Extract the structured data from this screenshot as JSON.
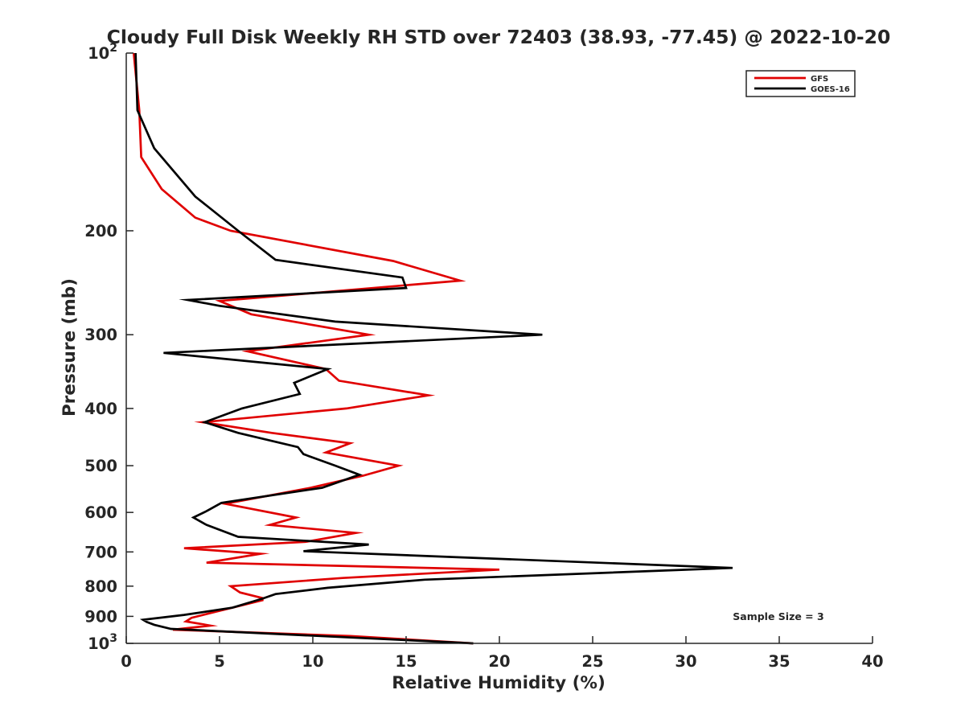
{
  "chart_data": {
    "type": "line",
    "title": "Cloudy Full Disk Weekly RH STD over 72403 (38.93, -77.45) @ 2022-10-20",
    "xlabel": "Relative Humidity (%)",
    "ylabel": "Pressure (mb)",
    "xlim": [
      0,
      40
    ],
    "ylim": [
      100,
      1000
    ],
    "y_scale": "log",
    "y_reversed": true,
    "grid": false,
    "legend_position": "top-right",
    "x_ticks": [
      0,
      5,
      10,
      15,
      20,
      25,
      30,
      35,
      40
    ],
    "y_ticks": [
      {
        "value": 100,
        "base": "10",
        "exp": "2"
      },
      {
        "value": 200,
        "label": "200"
      },
      {
        "value": 300,
        "label": "300"
      },
      {
        "value": 400,
        "label": "400"
      },
      {
        "value": 500,
        "label": "500"
      },
      {
        "value": 600,
        "label": "600"
      },
      {
        "value": 700,
        "label": "700"
      },
      {
        "value": 800,
        "label": "800"
      },
      {
        "value": 900,
        "label": "900"
      },
      {
        "value": 1000,
        "base": "10",
        "exp": "3"
      }
    ],
    "annotation": "Sample Size = 3",
    "series": [
      {
        "name": "GFS",
        "color": "#e00000",
        "points": [
          [
            0.4,
            100
          ],
          [
            0.7,
            125
          ],
          [
            0.8,
            150
          ],
          [
            1.9,
            170
          ],
          [
            3.7,
            190
          ],
          [
            5.6,
            200
          ],
          [
            14.3,
            225
          ],
          [
            17.9,
            243
          ],
          [
            5,
            263
          ],
          [
            6.7,
            277
          ],
          [
            13,
            300
          ],
          [
            6.5,
            320
          ],
          [
            10.7,
            343
          ],
          [
            11.4,
            359
          ],
          [
            16.2,
            380
          ],
          [
            11.8,
            400
          ],
          [
            4.1,
            422
          ],
          [
            7.8,
            440
          ],
          [
            12,
            458
          ],
          [
            10.7,
            475
          ],
          [
            14.6,
            500
          ],
          [
            12.7,
            520
          ],
          [
            9.9,
            545
          ],
          [
            5.3,
            580
          ],
          [
            9.1,
            612
          ],
          [
            7.7,
            630
          ],
          [
            12.3,
            650
          ],
          [
            9.6,
            673
          ],
          [
            3.1,
            690
          ],
          [
            7.2,
            705
          ],
          [
            4.3,
            730
          ],
          [
            20,
            750
          ],
          [
            11.6,
            775
          ],
          [
            5.6,
            800
          ],
          [
            6.1,
            820
          ],
          [
            7.3,
            838
          ],
          [
            7.3,
            845
          ],
          [
            5.7,
            870
          ],
          [
            4.6,
            887
          ],
          [
            3.5,
            905
          ],
          [
            3.2,
            918
          ],
          [
            4.5,
            933
          ],
          [
            2.5,
            948
          ],
          [
            12,
            972
          ],
          [
            18.6,
            1000
          ]
        ]
      },
      {
        "name": "GOES-16",
        "color": "#000000",
        "points": [
          [
            0.5,
            100
          ],
          [
            0.6,
            125
          ],
          [
            1.5,
            145
          ],
          [
            3.7,
            175
          ],
          [
            6,
            200
          ],
          [
            8,
            224
          ],
          [
            14.8,
            240
          ],
          [
            15,
            250
          ],
          [
            3.3,
            262
          ],
          [
            5,
            268
          ],
          [
            11.2,
            285
          ],
          [
            22.3,
            300
          ],
          [
            2,
            322
          ],
          [
            10.8,
            343
          ],
          [
            9,
            362
          ],
          [
            9.3,
            378
          ],
          [
            6.2,
            400
          ],
          [
            4.2,
            422
          ],
          [
            6,
            440
          ],
          [
            9.2,
            465
          ],
          [
            9.5,
            478
          ],
          [
            11.2,
            500
          ],
          [
            12.5,
            518
          ],
          [
            10.5,
            545
          ],
          [
            5.1,
            578
          ],
          [
            4.3,
            597
          ],
          [
            3.6,
            612
          ],
          [
            4.3,
            630
          ],
          [
            6,
            660
          ],
          [
            13,
            680
          ],
          [
            9.5,
            698
          ],
          [
            32.5,
            745
          ],
          [
            16,
            780
          ],
          [
            10.8,
            805
          ],
          [
            8,
            825
          ],
          [
            7.3,
            840
          ],
          [
            5.7,
            870
          ],
          [
            3.1,
            895
          ],
          [
            0.9,
            912
          ],
          [
            1.1,
            920
          ],
          [
            1.5,
            930
          ],
          [
            2.4,
            945
          ],
          [
            18.6,
            1000
          ]
        ]
      }
    ]
  }
}
